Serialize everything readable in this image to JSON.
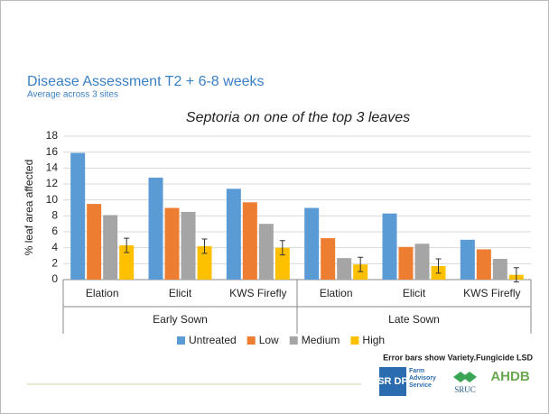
{
  "title": "Disease Assessment T2 + 6-8 weeks",
  "subtitle": "Average across 3 sites",
  "note": "Error bars show Variety.Fungicide LSD",
  "logos": {
    "srdp": "SR DP",
    "fas": "Farm Advisory Service",
    "sruc": "SRUC",
    "ahdb": "AHDB"
  },
  "chart_data": {
    "type": "bar",
    "title": "Septoria on one of the top 3 leaves",
    "ylabel": "% leaf area affected",
    "groups": [
      {
        "name": "Early Sown",
        "categories": [
          "Elation",
          "Elicit",
          "KWS Firefly"
        ]
      },
      {
        "name": "Late Sown",
        "categories": [
          "Elation",
          "Elicit",
          "KWS Firefly"
        ]
      }
    ],
    "series": [
      {
        "name": "Untreated",
        "color": "#5b9bd5",
        "values": [
          15.9,
          12.8,
          11.4,
          9.0,
          8.3,
          5.0
        ]
      },
      {
        "name": "Low",
        "color": "#ed7d31",
        "values": [
          9.5,
          9.0,
          9.7,
          5.2,
          4.1,
          3.8
        ]
      },
      {
        "name": "Medium",
        "color": "#a5a5a5",
        "values": [
          8.1,
          8.5,
          7.0,
          2.7,
          4.5,
          2.6
        ]
      },
      {
        "name": "High",
        "color": "#ffc000",
        "values": [
          4.3,
          4.2,
          4.0,
          1.9,
          1.7,
          0.6
        ],
        "errors": [
          0.9,
          0.9,
          0.9,
          0.9,
          0.9,
          0.9
        ]
      }
    ],
    "ylim": [
      0,
      18
    ],
    "yticks": [
      0,
      2,
      4,
      6,
      8,
      10,
      12,
      14,
      16,
      18
    ],
    "grid": true,
    "legend": "bottom"
  }
}
